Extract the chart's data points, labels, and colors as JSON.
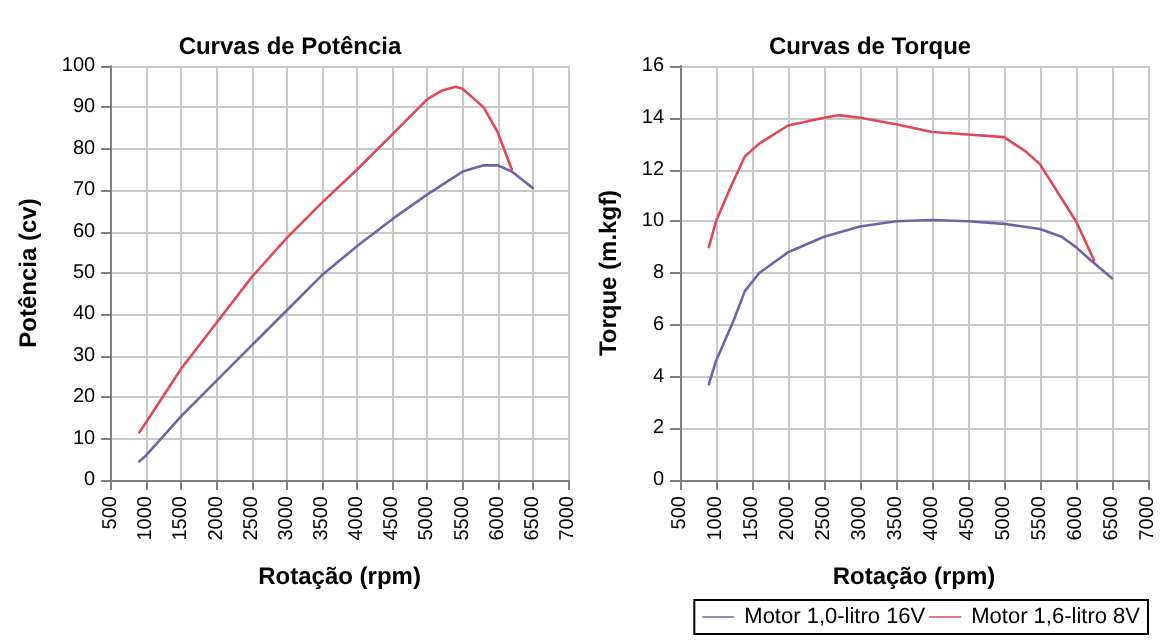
{
  "chart_data": [
    {
      "type": "line",
      "title": "Curvas de Potência",
      "xlabel": "Rotação (rpm)",
      "ylabel": "Potência (cv)",
      "xlim": [
        500,
        7000
      ],
      "xticks": [
        500,
        1000,
        1500,
        2000,
        2500,
        3000,
        3500,
        4000,
        4500,
        5000,
        5500,
        6000,
        6500,
        7000
      ],
      "ylim": [
        0,
        100
      ],
      "yticks": [
        0,
        10,
        20,
        30,
        40,
        50,
        60,
        70,
        80,
        90,
        100
      ],
      "grid": true,
      "marker": "none",
      "line_style": "solid",
      "series": [
        {
          "color": "#7462a8",
          "x": [
            900,
            1000,
            1500,
            2000,
            2500,
            3000,
            3500,
            4000,
            4500,
            5000,
            5500,
            5800,
            6000,
            6200,
            6500
          ],
          "values": [
            4.5,
            6,
            15.5,
            24,
            32.5,
            41,
            49.5,
            56.5,
            63,
            69,
            74.5,
            76,
            76,
            74.5,
            70.5
          ]
        },
        {
          "color": "#e0485a",
          "x": [
            900,
            1000,
            1500,
            2000,
            2500,
            3000,
            3500,
            4000,
            4500,
            5000,
            5200,
            5400,
            5500,
            5800,
            6000,
            6200
          ],
          "values": [
            11.5,
            14,
            27,
            38,
            49,
            58.5,
            67,
            75,
            83.5,
            92,
            94,
            95,
            94.5,
            90,
            84,
            75
          ]
        }
      ]
    },
    {
      "type": "line",
      "title": "Curvas de Torque",
      "xlabel": "Rotação (rpm)",
      "ylabel": "Torque (m.kgf)",
      "xlim": [
        500,
        7000
      ],
      "xticks": [
        500,
        1000,
        1500,
        2000,
        2500,
        3000,
        3500,
        4000,
        4500,
        5000,
        5500,
        6000,
        6500,
        7000
      ],
      "ylim": [
        0,
        16
      ],
      "yticks": [
        0,
        2,
        4,
        6,
        8,
        10,
        12,
        14,
        16
      ],
      "grid": true,
      "marker": "none",
      "line_style": "solid",
      "legend": "bottom right",
      "series": [
        {
          "name": "Motor 1,0-litro 16V",
          "color": "#7462a8",
          "x": [
            900,
            1000,
            1250,
            1400,
            1600,
            1750,
            2000,
            2500,
            3000,
            3500,
            4000,
            4500,
            5000,
            5500,
            5800,
            6000,
            6200,
            6500
          ],
          "values": [
            3.7,
            4.6,
            6.2,
            7.3,
            8,
            8.3,
            8.8,
            9.4,
            9.8,
            10,
            10.05,
            10,
            9.9,
            9.7,
            9.4,
            9,
            8.5,
            7.8
          ]
        },
        {
          "name": "Motor 1,6-litro 8V",
          "color": "#e0485a",
          "x": [
            900,
            1000,
            1200,
            1400,
            1600,
            2000,
            2500,
            2700,
            3000,
            3500,
            4000,
            4500,
            5000,
            5300,
            5500,
            6000,
            6250
          ],
          "values": [
            9,
            10,
            11.3,
            12.5,
            13,
            13.7,
            14,
            14.1,
            14,
            13.75,
            13.45,
            13.35,
            13.25,
            12.7,
            12.2,
            10,
            8.5
          ]
        }
      ]
    }
  ]
}
